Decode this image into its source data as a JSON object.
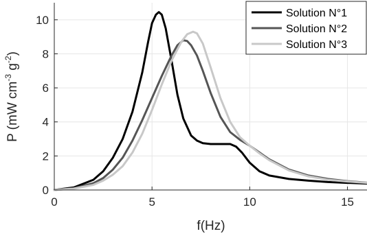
{
  "chart_data": {
    "type": "line",
    "xlabel": "f(Hz)",
    "ylabel": {
      "base": "P (mW cm",
      "exp1": "-3",
      "mid": " g",
      "exp2": "-2",
      "tail": ")"
    },
    "xlim": [
      0,
      16
    ],
    "ylim": [
      0,
      11
    ],
    "xticks": [
      0,
      5,
      10,
      15
    ],
    "yticks": [
      0,
      2,
      4,
      6,
      8,
      10
    ],
    "grid": true,
    "legend_position": "top-right",
    "series": [
      {
        "name": "Solution N°1",
        "color": "#000000",
        "x": [
          0,
          1,
          2,
          2.5,
          3,
          3.5,
          4,
          4.5,
          4.8,
          5,
          5.2,
          5.35,
          5.5,
          5.7,
          6,
          6.3,
          6.6,
          7,
          7.3,
          7.6,
          8,
          8.5,
          9,
          9.3,
          9.6,
          10,
          10.5,
          11,
          12,
          13,
          14,
          15,
          16
        ],
        "y": [
          0,
          0.15,
          0.6,
          1.1,
          1.9,
          3.0,
          4.6,
          6.9,
          8.7,
          9.8,
          10.3,
          10.45,
          10.3,
          9.5,
          7.6,
          5.6,
          4.2,
          3.2,
          2.9,
          2.75,
          2.7,
          2.7,
          2.7,
          2.55,
          2.2,
          1.6,
          1.1,
          0.85,
          0.65,
          0.55,
          0.47,
          0.42,
          0.38
        ]
      },
      {
        "name": "Solution N°2",
        "color": "#555555",
        "x": [
          0,
          1,
          2,
          2.5,
          3,
          3.5,
          4,
          4.5,
          5,
          5.5,
          6,
          6.3,
          6.6,
          6.8,
          7,
          7.3,
          7.6,
          8,
          8.5,
          9,
          9.5,
          10,
          10.5,
          11,
          12,
          13,
          14,
          15,
          16
        ],
        "y": [
          0,
          0.1,
          0.4,
          0.7,
          1.2,
          1.9,
          2.9,
          4.1,
          5.4,
          6.7,
          7.9,
          8.5,
          8.8,
          8.75,
          8.5,
          7.9,
          7.0,
          5.7,
          4.3,
          3.4,
          2.95,
          2.6,
          2.2,
          1.8,
          1.2,
          0.85,
          0.65,
          0.52,
          0.43
        ]
      },
      {
        "name": "Solution N°3",
        "color": "#c8c8c8",
        "x": [
          0,
          1,
          2,
          2.5,
          3,
          3.5,
          4,
          4.5,
          5,
          5.5,
          6,
          6.5,
          6.8,
          7.1,
          7.3,
          7.6,
          8,
          8.5,
          9,
          9.5,
          10,
          10.5,
          11,
          12,
          13,
          14,
          15,
          16
        ],
        "y": [
          0,
          0.08,
          0.3,
          0.55,
          0.9,
          1.4,
          2.2,
          3.3,
          4.7,
          6.2,
          7.6,
          8.7,
          9.15,
          9.3,
          9.2,
          8.6,
          7.2,
          5.4,
          4.0,
          3.1,
          2.6,
          2.15,
          1.75,
          1.15,
          0.8,
          0.6,
          0.5,
          0.42
        ]
      }
    ]
  }
}
